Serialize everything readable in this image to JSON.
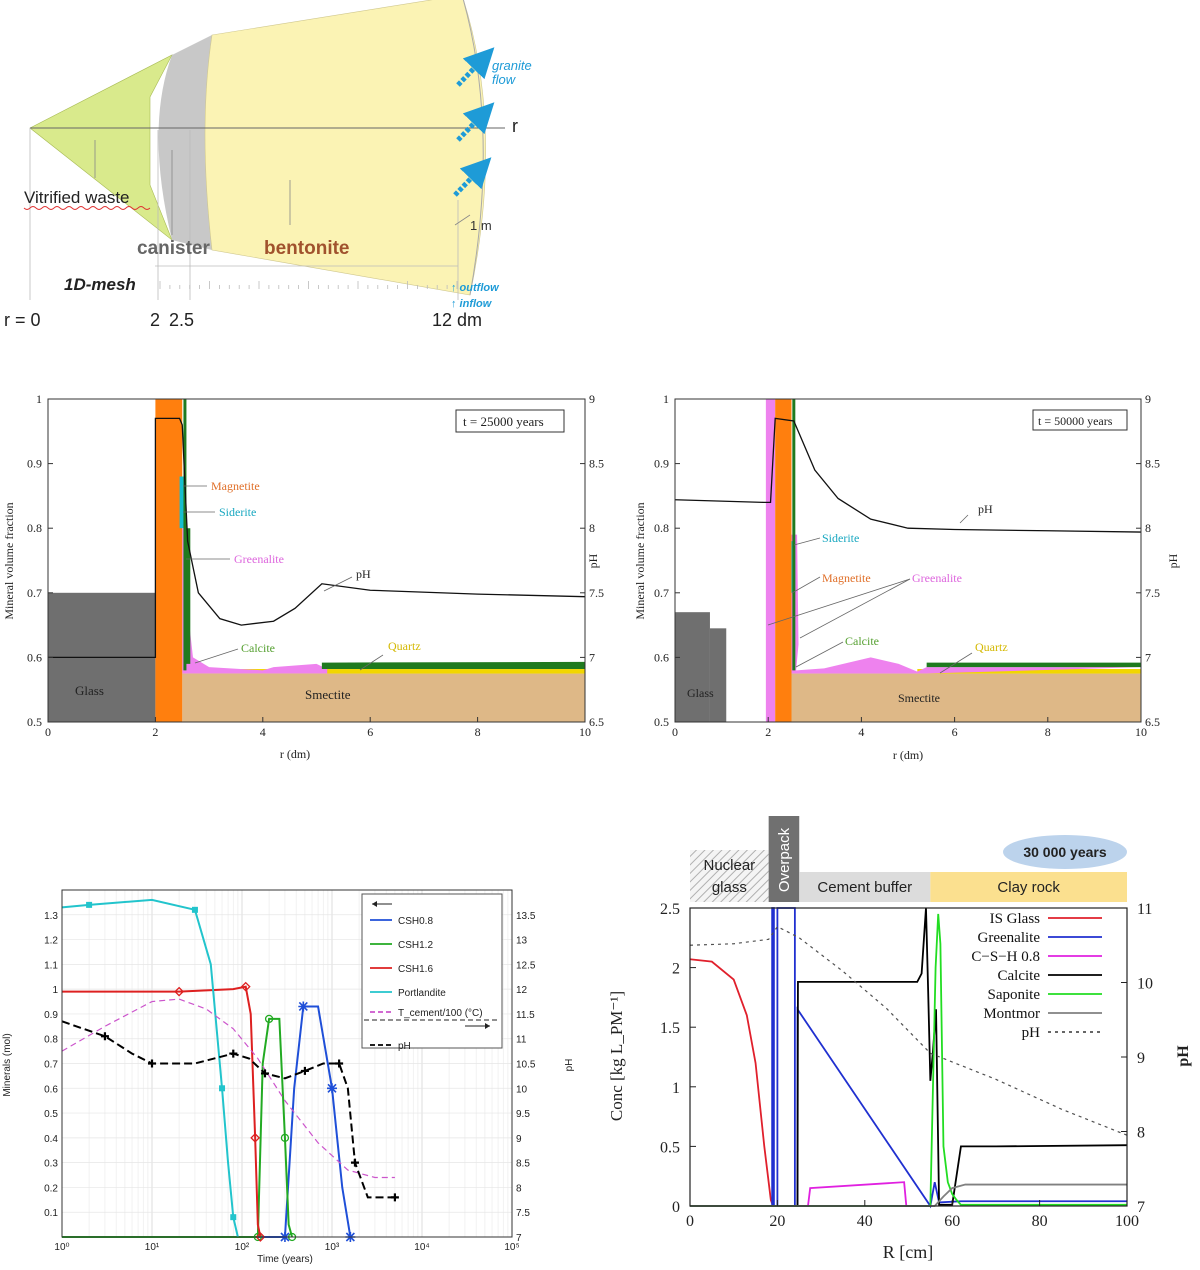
{
  "diagram": {
    "labels": {
      "vitrified": "Vitrified waste",
      "canister": "canister",
      "bentonite": "bentonite",
      "mesh": "1D-mesh",
      "r": "r",
      "granite": "granite",
      "flow": "flow",
      "one_m": "1 m",
      "outflow": "↑ outflow",
      "inflow": "↑ inflow",
      "r0": "r = 0",
      "r2": "2",
      "r25": "2.5",
      "r12": "12 dm"
    },
    "colors": {
      "waste": "#d9ea8c",
      "canister": "#c8c8c8",
      "bentonite": "#fbf3b4",
      "arrow": "#1e9bd7",
      "bentonite_text": "#a0522d"
    }
  },
  "chart_data": [
    {
      "id": "profile-25000",
      "type": "area",
      "title": "t = 25000 years",
      "xlabel": "r (dm)",
      "ylabel": "Mineral volume fraction",
      "y2label": "pH",
      "xlim": [
        0,
        10
      ],
      "ylim": [
        0.5,
        1
      ],
      "y2lim": [
        6.5,
        9
      ],
      "xticks": [
        "0",
        "2",
        "4",
        "6",
        "8",
        "10"
      ],
      "yticks": [
        "0.5",
        "0.6",
        "0.7",
        "0.8",
        "0.9",
        "1"
      ],
      "y2ticks": [
        "6.5",
        "7",
        "7.5",
        "8",
        "8.5",
        "9"
      ],
      "regions": {
        "glass": "Glass",
        "smectite": "Smectite"
      },
      "glass": {
        "x": [
          0,
          2
        ],
        "top": 0.7
      },
      "magnetite": {
        "x": [
          2.0,
          2.5
        ],
        "top": 1.0
      },
      "smectite_top": 0.575,
      "series": [
        {
          "name": "Magnetite",
          "color": "#ff7f0e"
        },
        {
          "name": "Siderite",
          "color": "#17becf"
        },
        {
          "name": "Greenalite",
          "color": "#ee82ee"
        },
        {
          "name": "Calcite",
          "color": "#2e8b57"
        },
        {
          "name": "Quartz",
          "color": "#f2d600"
        }
      ],
      "labels": {
        "magnetite": "Magnetite",
        "siderite": "Siderite",
        "greenalite": "Greenalite",
        "calcite": "Calcite",
        "quartz": "Quartz",
        "ph": "pH"
      },
      "ph": {
        "x": [
          0,
          2.0,
          2.0,
          2.45,
          2.5,
          2.6,
          2.8,
          3.2,
          3.6,
          4.2,
          4.6,
          5.1,
          6,
          8,
          10
        ],
        "y": [
          7.0,
          7.0,
          8.85,
          8.85,
          8.8,
          7.9,
          7.5,
          7.3,
          7.25,
          7.28,
          7.38,
          7.57,
          7.52,
          7.49,
          7.47
        ]
      },
      "quartz_top": [
        [
          2.6,
          0.58
        ],
        [
          4.2,
          0.58
        ],
        [
          5.1,
          0.585
        ],
        [
          5.2,
          0.59
        ],
        [
          10,
          0.59
        ]
      ]
    },
    {
      "id": "profile-50000",
      "type": "area",
      "title": "t = 50000 years",
      "xlabel": "r (dm)",
      "ylabel": "Mineral volume fraction",
      "y2label": "pH",
      "xlim": [
        0,
        10
      ],
      "ylim": [
        0.5,
        1
      ],
      "y2lim": [
        6.5,
        9
      ],
      "xticks": [
        "0",
        "2",
        "4",
        "6",
        "8",
        "10"
      ],
      "yticks": [
        "0.5",
        "0.6",
        "0.7",
        "0.8",
        "0.9",
        "1"
      ],
      "y2ticks": [
        "6.5",
        "7",
        "7.5",
        "8",
        "8.5",
        "9"
      ],
      "regions": {
        "glass": "Glass",
        "smectite": "Smectite"
      },
      "glass_steps": [
        [
          0,
          0.75,
          0.67
        ],
        [
          0.75,
          1.1,
          0.645
        ]
      ],
      "smectite_top": 0.575,
      "series": [
        {
          "name": "Siderite",
          "color": "#17becf"
        },
        {
          "name": "Magnetite",
          "color": "#ff7f0e"
        },
        {
          "name": "Greenalite",
          "color": "#ee82ee"
        },
        {
          "name": "Calcite",
          "color": "#2e8b57"
        },
        {
          "name": "Quartz",
          "color": "#f2d600"
        }
      ],
      "labels": {
        "siderite": "Siderite",
        "magnetite": "Magnetite",
        "greenalite": "Greenalite",
        "calcite": "Calcite",
        "quartz": "Quartz",
        "ph": "pH"
      },
      "ph": {
        "x": [
          0,
          1.9,
          2.05,
          2.15,
          2.55,
          3.0,
          3.5,
          4.2,
          5.0,
          6.0,
          8.0,
          10
        ],
        "y": [
          8.22,
          8.2,
          8.2,
          8.85,
          8.83,
          8.45,
          8.23,
          8.07,
          8.0,
          7.99,
          7.98,
          7.97
        ]
      },
      "greenalite_hump": [
        [
          2.6,
          0.58
        ],
        [
          3.2,
          0.583
        ],
        [
          4.2,
          0.6
        ],
        [
          4.8,
          0.59
        ],
        [
          5.2,
          0.578
        ],
        [
          5.4,
          0.585
        ],
        [
          10,
          0.585
        ]
      ]
    },
    {
      "id": "time-series",
      "type": "line",
      "xlabel": "Time (years)",
      "ylabel": "Minerals (mol)",
      "y2label": "pH",
      "xscale": "log",
      "xlim": [
        1,
        100000
      ],
      "ylim": [
        0,
        1.4
      ],
      "y2lim": [
        7,
        14
      ],
      "xticks": [
        "10⁰",
        "10¹",
        "10²",
        "10³",
        "10⁴",
        "10⁵"
      ],
      "yticks": [
        "0.1",
        "0.2",
        "0.3",
        "0.4",
        "0.5",
        "0.6",
        "0.7",
        "0.8",
        "0.9",
        "1",
        "1.1",
        "1.2",
        "1.3"
      ],
      "y2ticks": [
        "7",
        "7.5",
        "8",
        "8.5",
        "9",
        "9.5",
        "10",
        "10.5",
        "11",
        "11.5",
        "12",
        "12.5",
        "13",
        "13.5"
      ],
      "legend": [
        "CSH0.8",
        "CSH1.2",
        "CSH1.6",
        "Portlandite",
        "T_cement/100 (°C)",
        "pH"
      ],
      "series": [
        {
          "name": "CSH0.8",
          "color": "#1f4fd8",
          "x": [
            1,
            300,
            380,
            480,
            700,
            1000,
            1300,
            1600
          ],
          "y": [
            0,
            0,
            0.6,
            0.93,
            0.93,
            0.6,
            0.2,
            0
          ]
        },
        {
          "name": "CSH1.2",
          "color": "#22aa22",
          "x": [
            1,
            150,
            170,
            200,
            260,
            300,
            330,
            360
          ],
          "y": [
            0,
            0,
            0.7,
            0.88,
            0.88,
            0.4,
            0.05,
            0
          ]
        },
        {
          "name": "CSH1.6",
          "color": "#dd2020",
          "x": [
            1,
            20,
            80,
            110,
            125,
            140,
            150,
            160
          ],
          "y": [
            0.99,
            0.99,
            1.0,
            1.01,
            0.9,
            0.4,
            0.05,
            0
          ]
        },
        {
          "name": "Portlandite",
          "color": "#22c4cc",
          "x": [
            1,
            2,
            10,
            30,
            45,
            60,
            70,
            80,
            90
          ],
          "y": [
            1.33,
            1.34,
            1.36,
            1.32,
            1.1,
            0.6,
            0.3,
            0.08,
            0
          ]
        },
        {
          "name": "T_cement/100 (°C)",
          "color": "#cc55cc",
          "dash": "6,4",
          "x": [
            1,
            3,
            10,
            20,
            40,
            80,
            150,
            300,
            700,
            1500,
            3000,
            5000
          ],
          "y": [
            0.75,
            0.85,
            0.95,
            0.96,
            0.92,
            0.84,
            0.72,
            0.55,
            0.38,
            0.27,
            0.24,
            0.24
          ]
        },
        {
          "name": "pH",
          "color": "#000000",
          "dash": "8,4",
          "axis": "y2",
          "x": [
            1,
            3,
            6,
            10,
            30,
            80,
            120,
            180,
            300,
            500,
            800,
            1200,
            1500,
            1800,
            2500,
            5000
          ],
          "y": [
            11.35,
            11.05,
            10.7,
            10.5,
            10.5,
            10.7,
            10.6,
            10.3,
            10.2,
            10.35,
            10.5,
            10.5,
            10.0,
            8.5,
            7.8,
            7.8
          ]
        }
      ]
    },
    {
      "id": "profile-30000",
      "type": "line",
      "badge": "30 000 years",
      "xlabel": "R [cm]",
      "ylabel": "Conc [kg L_PM⁻¹]",
      "y2label": "pH",
      "xlim": [
        0,
        100
      ],
      "ylim": [
        0,
        2.5
      ],
      "y2lim": [
        7,
        11
      ],
      "xticks": [
        "0",
        "20",
        "40",
        "60",
        "80",
        "100"
      ],
      "yticks": [
        "0",
        "0.5",
        "1",
        "1.5",
        "2",
        "2.5"
      ],
      "y2ticks": [
        "7",
        "8",
        "9",
        "10",
        "11"
      ],
      "zones": [
        {
          "name": "Nuclear glass",
          "lines": [
            "Nuclear",
            "glass"
          ],
          "x": [
            0,
            18
          ],
          "color": "#e8e8e8"
        },
        {
          "name": "Overpack",
          "x": [
            18,
            25
          ],
          "color": "#707070"
        },
        {
          "name": "Cement buffer",
          "x": [
            25,
            55
          ],
          "color": "#dcdcdc"
        },
        {
          "name": "Clay rock",
          "x": [
            55,
            100
          ],
          "color": "#fbe08f"
        }
      ],
      "series": [
        {
          "name": "IS Glass",
          "color": "#e0202c",
          "x": [
            0,
            5,
            10,
            13,
            15,
            17,
            18.5,
            19
          ],
          "y": [
            2.07,
            2.05,
            1.9,
            1.6,
            1.2,
            0.5,
            0.05,
            0
          ]
        },
        {
          "name": "Greenalite",
          "color": "#2030d0",
          "x": [
            0,
            18.8,
            18.8,
            19.2,
            19.2,
            20,
            20,
            24,
            24,
            24.6,
            24.6,
            55,
            56,
            57,
            62,
            100
          ],
          "y": [
            0,
            0,
            2.5,
            2.5,
            0,
            0,
            2.5,
            2.5,
            0,
            0,
            1.65,
            0,
            0.2,
            0.03,
            0.04,
            0.04
          ]
        },
        {
          "name": "C−S−H 0.8",
          "color": "#e020e0",
          "x": [
            0,
            27,
            27.5,
            49,
            49.5,
            55
          ],
          "y": [
            0,
            0,
            0.15,
            0.2,
            0.0,
            0
          ]
        },
        {
          "name": "Calcite",
          "color": "#000000",
          "x": [
            0,
            24.6,
            24.7,
            52,
            53,
            54,
            54.5,
            55,
            55.6,
            56.3,
            57,
            60,
            62,
            70,
            100
          ],
          "y": [
            0,
            0,
            1.88,
            1.88,
            1.95,
            2.5,
            1.8,
            1.05,
            1.3,
            1.65,
            0.01,
            0.01,
            0.5,
            0.5,
            0.51
          ]
        },
        {
          "name": "Saponite",
          "color": "#22dd22",
          "x": [
            0,
            55,
            56.2,
            56.8,
            57.3,
            58,
            59,
            60,
            61,
            62,
            100
          ],
          "y": [
            0,
            0,
            2.0,
            2.45,
            2.2,
            0.5,
            0.2,
            0.1,
            0.05,
            0.01,
            0.01
          ]
        },
        {
          "name": "Montmor",
          "color": "#808080",
          "x": [
            0,
            56,
            58,
            60,
            63,
            100
          ],
          "y": [
            0,
            0,
            0.08,
            0.15,
            0.18,
            0.18
          ]
        },
        {
          "name": "pH",
          "color": "#505050",
          "dash": "3,4",
          "axis": "y2",
          "x": [
            0,
            10,
            18,
            20,
            25,
            35,
            45,
            55,
            70,
            85,
            100
          ],
          "y": [
            10.5,
            10.52,
            10.58,
            10.75,
            10.6,
            10.15,
            9.65,
            9.05,
            8.7,
            8.3,
            7.95
          ]
        }
      ]
    }
  ]
}
